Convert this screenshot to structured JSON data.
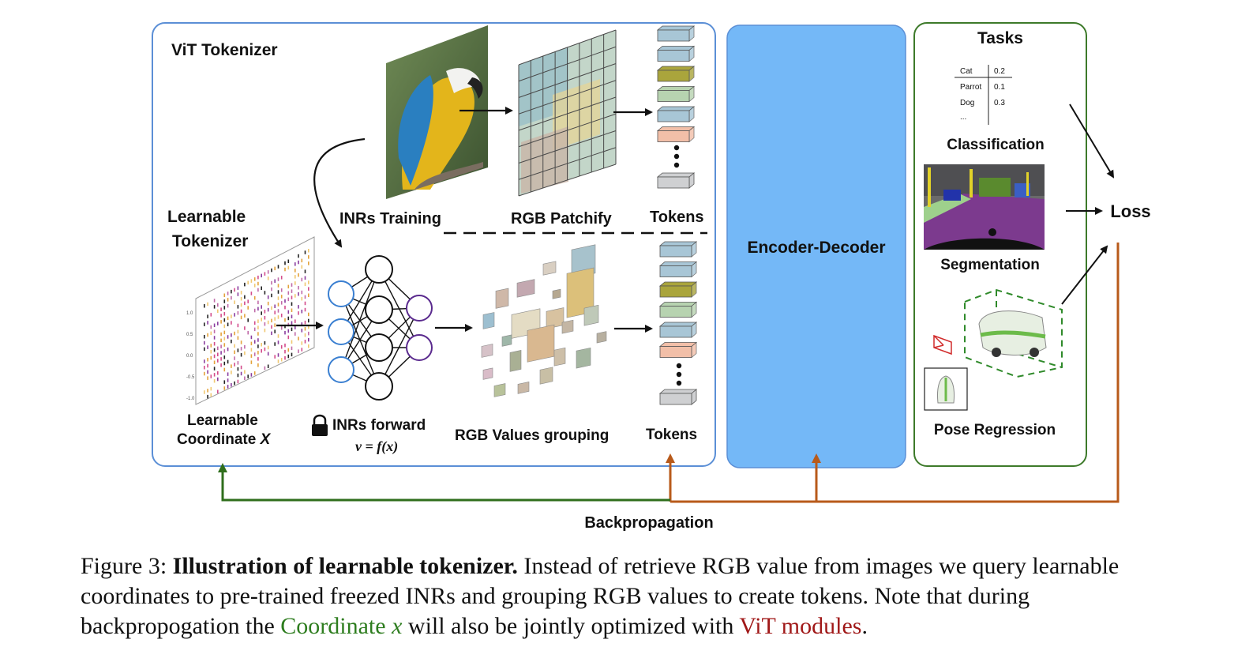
{
  "vit_tokenizer": {
    "title": "ViT Tokenizer",
    "inrs_training_label": "INRs Training",
    "rgb_patchify_label": "RGB Patchify",
    "tokens_top_label": "Tokens"
  },
  "learnable_tokenizer": {
    "title_line1": "Learnable",
    "title_line2": "Tokenizer",
    "coord_label_line1": "Learnable",
    "coord_label_line2": "Coordinate ",
    "coord_var": "X",
    "inrs_forward_label": "INRs forward",
    "inrs_formula": "v = f(x)",
    "rgb_grouping_label": "RGB Values grouping",
    "tokens_bottom_label": "Tokens",
    "axis_ticks": [
      "1.0",
      "0.5",
      "0.0",
      "-0.5",
      "-1.0"
    ]
  },
  "encoder_decoder": {
    "label": "Encoder-Decoder"
  },
  "tasks": {
    "title": "Tasks",
    "classification": {
      "label": "Classification",
      "table": [
        {
          "cls": "Cat",
          "score": "0.2"
        },
        {
          "cls": "Parrot",
          "score": "0.1"
        },
        {
          "cls": "Dog",
          "score": "0.3"
        },
        {
          "cls": "...",
          "score": ""
        }
      ]
    },
    "segmentation_label": "Segmentation",
    "pose_regression_label": "Pose Regression"
  },
  "loss_label": "Loss",
  "backprop_label": "Backpropagation",
  "caption": {
    "prefix": "Figure 3: ",
    "bold": "Illustration of learnable tokenizer.",
    "text1": " Instead of retrieve RGB value from images we query learnable coordinates to pre-trained freezed INRs and grouping RGB values to create tokens. Note that during backpropogation the ",
    "green": "Coordinate ",
    "green_var": "x",
    "text2": " will also be jointly optimized with ",
    "red": "ViT modules",
    "text3": "."
  },
  "colors": {
    "box_border": "#5b8fd6",
    "encoder_fill": "#74b8f7",
    "tasks_border": "#3d7a2a",
    "backprop_green": "#2f6e1c",
    "backprop_orange": "#b85a1a",
    "token_blue": "#a8c6d6",
    "token_olive": "#aaa53c",
    "token_green": "#b7d3b0",
    "token_salmon": "#f2bfa8",
    "token_gray": "#cfd0d2"
  }
}
